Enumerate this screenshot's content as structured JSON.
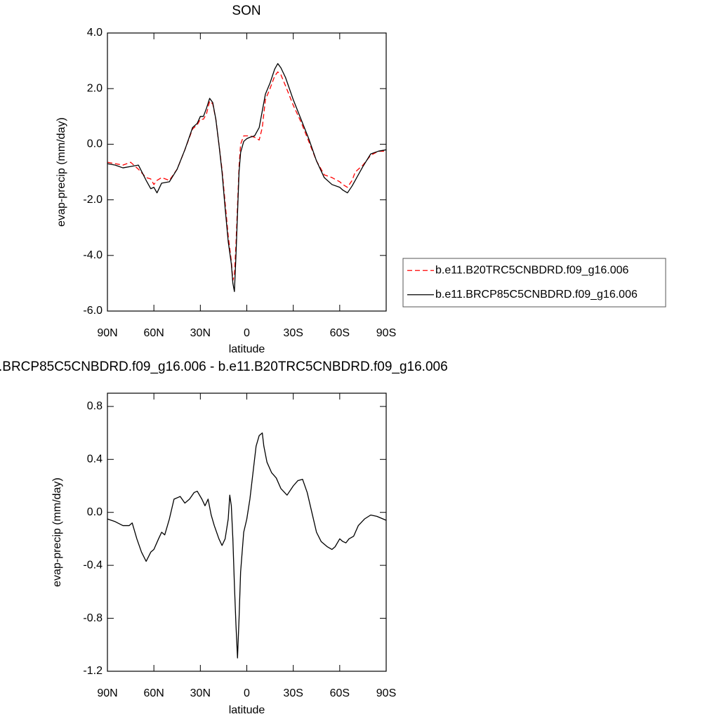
{
  "chart_data": [
    {
      "type": "line",
      "title": "SON",
      "x_label": "latitude",
      "y_label": "evap-precip (mm/day)",
      "x": [
        90,
        85,
        80,
        75,
        70,
        65,
        62,
        60,
        58,
        55,
        50,
        45,
        40,
        35,
        32,
        30,
        28,
        26,
        24,
        22,
        20,
        18,
        16,
        14,
        12,
        10,
        9,
        8,
        7,
        6,
        5,
        4,
        2,
        0,
        -2,
        -5,
        -8,
        -10,
        -12,
        -15,
        -18,
        -20,
        -22,
        -25,
        -30,
        -35,
        -40,
        -45,
        -50,
        -55,
        -60,
        -62,
        -65,
        -68,
        -70,
        -75,
        -80,
        -85,
        -90
      ],
      "series": [
        {
          "name": "b.e11.B20TRC5CNBDRD.f09_g16.006",
          "color": "#ff0000",
          "dash": true,
          "values": [
            -0.65,
            -0.7,
            -0.75,
            -0.65,
            -0.9,
            -1.2,
            -1.25,
            -1.45,
            -1.3,
            -1.2,
            -1.3,
            -0.9,
            -0.2,
            0.55,
            0.7,
            0.9,
            0.9,
            1.1,
            1.55,
            1.45,
            0.9,
            0.0,
            -0.9,
            -2.1,
            -3.3,
            -4.2,
            -4.9,
            -4.7,
            -3.6,
            -2.2,
            -0.8,
            0.0,
            0.3,
            0.3,
            0.3,
            0.25,
            0.15,
            0.6,
            1.6,
            2.0,
            2.45,
            2.6,
            2.5,
            2.1,
            1.4,
            0.8,
            0.1,
            -0.6,
            -1.1,
            -1.2,
            -1.35,
            -1.45,
            -1.55,
            -1.3,
            -1.0,
            -0.75,
            -0.4,
            -0.25,
            -0.25
          ]
        },
        {
          "name": "b.e11.BRCP85C5CNBDRD.f09_g16.006",
          "color": "#000000",
          "dash": false,
          "values": [
            -0.7,
            -0.75,
            -0.85,
            -0.8,
            -0.75,
            -1.3,
            -1.6,
            -1.55,
            -1.75,
            -1.4,
            -1.35,
            -0.9,
            -0.2,
            0.6,
            0.75,
            1.0,
            1.0,
            1.3,
            1.65,
            1.5,
            0.9,
            0.0,
            -1.0,
            -2.3,
            -3.5,
            -4.3,
            -5.0,
            -5.3,
            -4.0,
            -2.5,
            -1.0,
            -0.3,
            0.1,
            0.2,
            0.25,
            0.3,
            0.6,
            1.2,
            1.8,
            2.2,
            2.7,
            2.9,
            2.75,
            2.4,
            1.6,
            0.9,
            0.2,
            -0.6,
            -1.2,
            -1.45,
            -1.55,
            -1.65,
            -1.75,
            -1.5,
            -1.3,
            -0.8,
            -0.35,
            -0.25,
            -0.2
          ]
        }
      ],
      "xlim": [
        90,
        -90
      ],
      "xticks": [
        {
          "value": 90,
          "label": "90N"
        },
        {
          "value": 60,
          "label": "60N"
        },
        {
          "value": 30,
          "label": "30N"
        },
        0,
        {
          "value": -30,
          "label": "30S"
        },
        {
          "value": -60,
          "label": "60S"
        },
        {
          "value": -90,
          "label": "90S"
        }
      ],
      "ylim": [
        -6,
        4
      ],
      "yticks": [
        {
          "value": -6,
          "label": "-6.0"
        },
        {
          "value": -4,
          "label": "-4.0"
        },
        {
          "value": -2,
          "label": "-2.0"
        },
        {
          "value": 0,
          "label": "0.0"
        },
        {
          "value": 2,
          "label": "2.0"
        },
        {
          "value": 4,
          "label": "4.0"
        }
      ],
      "legend": "right",
      "grid": false
    },
    {
      "type": "line",
      "title": ".BRCP85C5CNBDRD.f09_g16.006 - b.e11.B20TRC5CNBDRD.f09_g16.006",
      "x_label": "latitude",
      "y_label": "evap-precip (mm/day)",
      "x": [
        90,
        85,
        80,
        76,
        74,
        71,
        68,
        65,
        62,
        60,
        57,
        55,
        53,
        50,
        47,
        43,
        40,
        37,
        34,
        32,
        29,
        27,
        25,
        23,
        21,
        18,
        16,
        14,
        12,
        11,
        10,
        9,
        8,
        7,
        6,
        5,
        4,
        2,
        0,
        -2,
        -4,
        -6,
        -8,
        -10,
        -11,
        -13,
        -16,
        -19,
        -22,
        -26,
        -30,
        -33,
        -36,
        -39,
        -42,
        -45,
        -48,
        -52,
        -55,
        -57,
        -60,
        -62,
        -64,
        -66,
        -69,
        -72,
        -76,
        -80,
        -84,
        -88,
        -90
      ],
      "values": [
        -0.05,
        -0.07,
        -0.1,
        -0.1,
        -0.08,
        -0.2,
        -0.3,
        -0.37,
        -0.3,
        -0.28,
        -0.2,
        -0.15,
        -0.17,
        -0.05,
        0.1,
        0.12,
        0.07,
        0.1,
        0.15,
        0.16,
        0.1,
        0.05,
        0.1,
        -0.02,
        -0.1,
        -0.2,
        -0.25,
        -0.2,
        -0.05,
        0.13,
        0.05,
        -0.2,
        -0.55,
        -0.85,
        -1.1,
        -0.8,
        -0.45,
        -0.15,
        -0.05,
        0.1,
        0.3,
        0.5,
        0.58,
        0.6,
        0.5,
        0.38,
        0.3,
        0.26,
        0.18,
        0.13,
        0.2,
        0.24,
        0.25,
        0.15,
        0.0,
        -0.15,
        -0.22,
        -0.26,
        -0.28,
        -0.26,
        -0.2,
        -0.22,
        -0.23,
        -0.2,
        -0.18,
        -0.1,
        -0.05,
        -0.02,
        -0.03,
        -0.05,
        -0.06
      ],
      "color": "#000000",
      "xlim": [
        90,
        -90
      ],
      "xticks": [
        {
          "value": 90,
          "label": "90N"
        },
        {
          "value": 60,
          "label": "60N"
        },
        {
          "value": 30,
          "label": "30N"
        },
        0,
        {
          "value": -30,
          "label": "30S"
        },
        {
          "value": -60,
          "label": "60S"
        },
        {
          "value": -90,
          "label": "90S"
        }
      ],
      "ylim": [
        -1.2,
        0.9
      ],
      "yticks": [
        {
          "value": -1.2,
          "label": "-1.2"
        },
        {
          "value": -0.8,
          "label": "-0.8"
        },
        {
          "value": -0.4,
          "label": "-0.4"
        },
        {
          "value": 0,
          "label": "0.0"
        },
        {
          "value": 0.4,
          "label": "0.4"
        },
        {
          "value": 0.8,
          "label": "0.8"
        }
      ],
      "grid": false
    }
  ]
}
